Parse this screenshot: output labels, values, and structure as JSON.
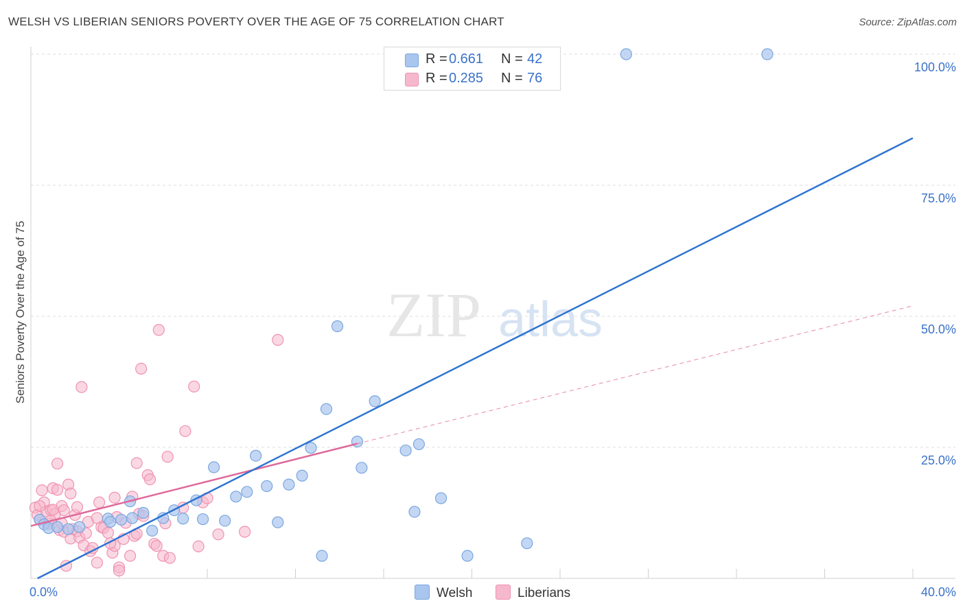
{
  "title": "WELSH VS LIBERIAN SENIORS POVERTY OVER THE AGE OF 75 CORRELATION CHART",
  "source": "Source: ZipAtlas.com",
  "watermark": {
    "zip": "ZIP",
    "atlas": "atlas"
  },
  "legend_top": {
    "rows": [
      {
        "r_label": "R =",
        "r_value": "0.661",
        "n_label": "N =",
        "n_value": "42",
        "color": "#a9c6ef"
      },
      {
        "r_label": "R =",
        "r_value": "0.285",
        "n_label": "N =",
        "n_value": "76",
        "color": "#f6b8cc"
      }
    ]
  },
  "legend_bottom": {
    "items": [
      {
        "label": "Welsh",
        "color": "#a9c6ef"
      },
      {
        "label": "Liberians",
        "color": "#f6b8cc"
      }
    ]
  },
  "colors": {
    "welsh_fill": "#a9c6ef",
    "welsh_stroke": "#7aa6dd",
    "welsh_line": "#2f74d0",
    "lib_fill": "#f6b8cc",
    "lib_stroke": "#ef92b0",
    "lib_line": "#e0689a",
    "tick_label": "#3a72c8",
    "grid": "#dedede"
  },
  "chart_data": {
    "type": "scatter",
    "title": "WELSH VS LIBERIAN SENIORS POVERTY OVER THE AGE OF 75 CORRELATION CHART",
    "xlabel": "",
    "ylabel": "Seniors Poverty Over the Age of 75",
    "xlim": [
      0,
      40
    ],
    "ylim": [
      0,
      100
    ],
    "x_tick_labels": [
      "0.0%",
      "40.0%"
    ],
    "y_ticks": [
      25,
      50,
      75,
      100
    ],
    "y_tick_labels": [
      "25.0%",
      "50.0%",
      "75.0%",
      "100.0%"
    ],
    "series": [
      {
        "name": "Welsh",
        "r": 0.661,
        "n": 42,
        "trend": {
          "x": [
            0.3,
            40.0
          ],
          "y": [
            0.0,
            84.0
          ],
          "style": "solid"
        },
        "points": [
          [
            0.4,
            11.2
          ],
          [
            0.6,
            10.3
          ],
          [
            0.8,
            9.6
          ],
          [
            1.2,
            9.8
          ],
          [
            1.7,
            9.4
          ],
          [
            2.2,
            9.8
          ],
          [
            3.5,
            11.4
          ],
          [
            3.6,
            10.8
          ],
          [
            4.1,
            11.2
          ],
          [
            4.6,
            11.5
          ],
          [
            4.5,
            14.7
          ],
          [
            5.1,
            12.5
          ],
          [
            5.5,
            9.1
          ],
          [
            6.0,
            11.5
          ],
          [
            6.5,
            13.0
          ],
          [
            6.9,
            11.4
          ],
          [
            7.5,
            14.9
          ],
          [
            7.8,
            11.3
          ],
          [
            8.3,
            21.2
          ],
          [
            8.8,
            11.0
          ],
          [
            9.3,
            15.6
          ],
          [
            9.8,
            16.5
          ],
          [
            10.2,
            23.4
          ],
          [
            10.7,
            17.6
          ],
          [
            11.2,
            10.7
          ],
          [
            11.7,
            17.9
          ],
          [
            12.3,
            19.6
          ],
          [
            12.7,
            24.9
          ],
          [
            13.4,
            32.3
          ],
          [
            13.2,
            4.3
          ],
          [
            13.9,
            48.1
          ],
          [
            14.8,
            26.1
          ],
          [
            15.0,
            21.1
          ],
          [
            15.6,
            33.8
          ],
          [
            17.0,
            24.4
          ],
          [
            17.4,
            12.7
          ],
          [
            17.6,
            25.6
          ],
          [
            18.6,
            15.3
          ],
          [
            19.8,
            4.3
          ],
          [
            22.5,
            6.7
          ],
          [
            27.0,
            100.0
          ],
          [
            33.4,
            100.0
          ]
        ]
      },
      {
        "name": "Liberians",
        "r": 0.285,
        "n": 76,
        "trend": {
          "x": [
            0.0,
            14.8
          ],
          "y": [
            10.0,
            25.7
          ],
          "style": "solid"
        },
        "trend_extension": {
          "x": [
            14.8,
            40.0
          ],
          "y": [
            25.7,
            52.0
          ],
          "style": "dashed"
        },
        "points": [
          [
            0.2,
            13.5
          ],
          [
            0.3,
            12.1
          ],
          [
            0.4,
            11.2
          ],
          [
            0.5,
            16.8
          ],
          [
            0.6,
            14.5
          ],
          [
            0.7,
            12.8
          ],
          [
            0.8,
            10.4
          ],
          [
            0.9,
            13.0
          ],
          [
            1.0,
            17.2
          ],
          [
            1.1,
            12.3
          ],
          [
            1.2,
            16.9
          ],
          [
            1.2,
            21.9
          ],
          [
            1.3,
            9.2
          ],
          [
            1.4,
            13.8
          ],
          [
            1.5,
            13.0
          ],
          [
            1.5,
            8.9
          ],
          [
            1.6,
            2.4
          ],
          [
            1.7,
            17.9
          ],
          [
            1.8,
            7.6
          ],
          [
            1.9,
            9.4
          ],
          [
            2.0,
            12.1
          ],
          [
            2.1,
            9.0
          ],
          [
            2.2,
            7.8
          ],
          [
            2.4,
            6.3
          ],
          [
            2.5,
            8.6
          ],
          [
            2.6,
            10.8
          ],
          [
            2.7,
            5.2
          ],
          [
            2.8,
            5.8
          ],
          [
            3.0,
            3.0
          ],
          [
            3.1,
            14.5
          ],
          [
            3.2,
            9.8
          ],
          [
            3.3,
            9.6
          ],
          [
            3.5,
            8.7
          ],
          [
            3.7,
            4.9
          ],
          [
            3.8,
            6.2
          ],
          [
            3.9,
            11.7
          ],
          [
            4.0,
            2.1
          ],
          [
            4.2,
            7.5
          ],
          [
            4.3,
            10.6
          ],
          [
            4.5,
            4.3
          ],
          [
            4.6,
            15.6
          ],
          [
            4.7,
            8.1
          ],
          [
            4.8,
            22.0
          ],
          [
            4.9,
            12.3
          ],
          [
            5.0,
            40.0
          ],
          [
            5.1,
            11.9
          ],
          [
            5.3,
            19.7
          ],
          [
            5.4,
            18.9
          ],
          [
            5.6,
            6.6
          ],
          [
            5.7,
            6.2
          ],
          [
            5.8,
            47.4
          ],
          [
            6.0,
            4.3
          ],
          [
            6.1,
            10.5
          ],
          [
            6.2,
            23.2
          ],
          [
            2.3,
            36.5
          ],
          [
            2.1,
            13.6
          ],
          [
            3.8,
            15.4
          ],
          [
            4.8,
            8.5
          ],
          [
            6.9,
            13.5
          ],
          [
            7.0,
            28.1
          ],
          [
            7.4,
            36.6
          ],
          [
            7.6,
            6.1
          ],
          [
            7.8,
            14.5
          ],
          [
            8.0,
            15.3
          ],
          [
            8.5,
            8.4
          ],
          [
            9.7,
            8.9
          ],
          [
            11.2,
            45.5
          ],
          [
            0.4,
            13.8
          ],
          [
            0.9,
            11.0
          ],
          [
            1.0,
            13.1
          ],
          [
            1.4,
            10.5
          ],
          [
            1.8,
            16.2
          ],
          [
            3.0,
            11.5
          ],
          [
            3.6,
            6.7
          ],
          [
            4.0,
            1.5
          ],
          [
            6.3,
            3.9
          ]
        ]
      }
    ]
  }
}
